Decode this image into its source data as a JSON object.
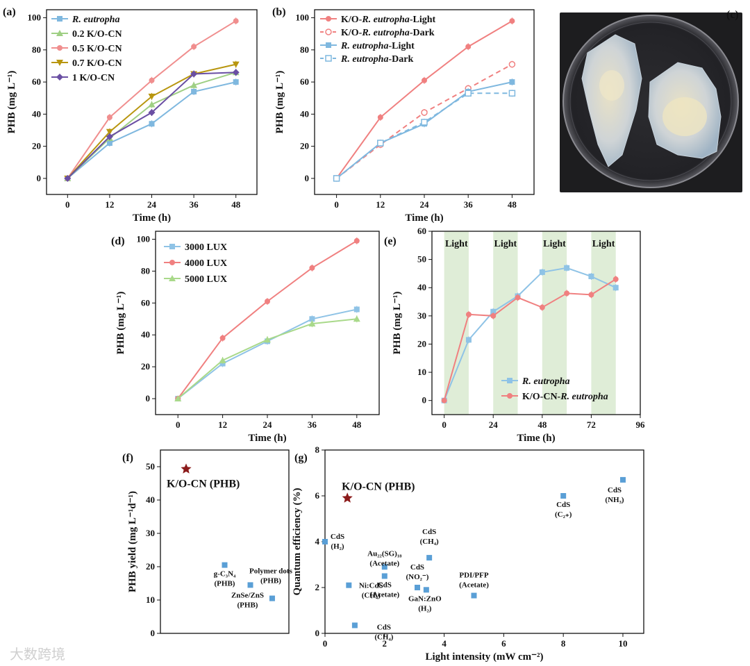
{
  "figure": {
    "panel_labels": [
      "(a)",
      "(b)",
      "(c)",
      "(d)",
      "(e)",
      "(f)",
      "(g)"
    ],
    "watermark": "大数跨境"
  },
  "chart_data": [
    {
      "id": "a",
      "type": "line",
      "xlabel": "Time (h)",
      "ylabel": "PHB (mg L⁻¹)",
      "x": [
        0,
        12,
        24,
        36,
        48
      ],
      "xlim": [
        -6,
        54
      ],
      "ylim": [
        -10,
        105
      ],
      "xticks": [
        0,
        12,
        24,
        36,
        48
      ],
      "yticks": [
        0,
        20,
        40,
        60,
        80,
        100
      ],
      "legend_position": "top-left",
      "series": [
        {
          "name": "R. eutropha",
          "italic": true,
          "color": "#7fb8df",
          "marker": "square",
          "values": [
            0,
            22,
            34,
            54,
            60
          ]
        },
        {
          "name": "0.2 K/O-CN",
          "color": "#9fcf84",
          "marker": "triangle",
          "values": [
            0,
            25,
            46,
            58,
            66
          ]
        },
        {
          "name": "0.5 K/O-CN",
          "color": "#f08e8e",
          "marker": "circle",
          "values": [
            0,
            38,
            61,
            82,
            98
          ]
        },
        {
          "name": "0.7 K/O-CN",
          "color": "#b8960f",
          "marker": "triangle-down",
          "values": [
            0,
            29,
            51,
            65,
            71
          ]
        },
        {
          "name": "1 K/O-CN",
          "color": "#6a4fa3",
          "marker": "diamond",
          "values": [
            0,
            26,
            41,
            65,
            66
          ]
        }
      ]
    },
    {
      "id": "b",
      "type": "line",
      "xlabel": "Time (h)",
      "ylabel": "PHB (mg L⁻¹)",
      "x": [
        0,
        12,
        24,
        36,
        48
      ],
      "xlim": [
        -6,
        54
      ],
      "ylim": [
        -10,
        105
      ],
      "xticks": [
        0,
        12,
        24,
        36,
        48
      ],
      "yticks": [
        0,
        20,
        40,
        60,
        80,
        100
      ],
      "legend_position": "top-left",
      "series": [
        {
          "name": "K/O-R. eutropha-Light",
          "prefix": "K/O-",
          "ital": "R. eutropha",
          "suffix": "-Light",
          "color": "#f08080",
          "marker": "circle",
          "dash": false,
          "values": [
            0,
            38,
            61,
            82,
            98
          ]
        },
        {
          "name": "K/O-R. eutropha-Dark",
          "prefix": "K/O-",
          "ital": "R. eutropha",
          "suffix": "-Dark",
          "color": "#f08080",
          "marker": "circle-open",
          "dash": true,
          "values": [
            0,
            21,
            41,
            56,
            71
          ]
        },
        {
          "name": "R. eutropha-Light",
          "prefix": "",
          "ital": "R. eutropha",
          "suffix": "-Light",
          "color": "#7fb8df",
          "marker": "square",
          "dash": false,
          "values": [
            0,
            22,
            34,
            54,
            60
          ]
        },
        {
          "name": "R. eutropha-Dark",
          "prefix": "",
          "ital": "R. eutropha",
          "suffix": "-Dark",
          "color": "#7fb8df",
          "marker": "square-open",
          "dash": true,
          "values": [
            0,
            22,
            35,
            53,
            53
          ]
        }
      ]
    },
    {
      "id": "d",
      "type": "line",
      "xlabel": "Time (h)",
      "ylabel": "PHB (mg L⁻¹)",
      "x": [
        0,
        12,
        24,
        36,
        48
      ],
      "xlim": [
        -6,
        54
      ],
      "ylim": [
        -10,
        105
      ],
      "xticks": [
        0,
        12,
        24,
        36,
        48
      ],
      "yticks": [
        0,
        20,
        40,
        60,
        80,
        100
      ],
      "legend_position": "top-left",
      "series": [
        {
          "name": "3000 LUX",
          "color": "#8fc3e6",
          "marker": "square",
          "values": [
            0,
            22,
            36,
            50,
            56
          ]
        },
        {
          "name": "4000 LUX",
          "color": "#f08080",
          "marker": "circle",
          "values": [
            0,
            38,
            61,
            82,
            99
          ]
        },
        {
          "name": "5000 LUX",
          "color": "#a9d98a",
          "marker": "triangle",
          "values": [
            0,
            24,
            37,
            47,
            50
          ]
        }
      ]
    },
    {
      "id": "e",
      "type": "line",
      "xlabel": "Time (h)",
      "ylabel": "PHB (mg L⁻¹)",
      "xlim": [
        -6,
        96
      ],
      "ylim": [
        -5,
        60
      ],
      "xticks": [
        0,
        24,
        48,
        72,
        96
      ],
      "yticks": [
        0,
        10,
        20,
        30,
        40,
        50,
        60
      ],
      "light_bands": [
        [
          0,
          12
        ],
        [
          24,
          36
        ],
        [
          48,
          60
        ],
        [
          72,
          84
        ]
      ],
      "band_label": "Light",
      "legend_position": "bottom-right",
      "series": [
        {
          "name": "R. eutropha",
          "prefix": "",
          "ital": "R. eutropha",
          "suffix": "",
          "color": "#8fc3e6",
          "marker": "square",
          "x": [
            0,
            12,
            24,
            36,
            48,
            60,
            72,
            84
          ],
          "values": [
            0,
            21.5,
            31.5,
            37,
            45.5,
            47,
            44,
            40
          ]
        },
        {
          "name": "K/O-CN-R. eutropha",
          "prefix": "K/O-CN-",
          "ital": "R. eutropha",
          "suffix": "",
          "color": "#f08080",
          "marker": "circle",
          "x": [
            0,
            12,
            24,
            36,
            48,
            60,
            72,
            84
          ],
          "values": [
            0,
            30.5,
            30,
            36.5,
            33,
            38,
            37.5,
            43
          ]
        }
      ]
    },
    {
      "id": "f",
      "type": "scatter",
      "ylabel": "PHB yield (mg L⁻¹d⁻¹)",
      "ylim": [
        0,
        55
      ],
      "yticks": [
        0,
        10,
        20,
        30,
        40,
        50
      ],
      "points": [
        {
          "x": 0.2,
          "y": 49.3,
          "marker": "star",
          "color": "#8b1a1a",
          "label": "K/O-CN (PHB)"
        },
        {
          "x": 0.5,
          "y": 20.5,
          "marker": "square",
          "color": "#5a9fd6",
          "label": "g-C₃N₄ (PHB)"
        },
        {
          "x": 0.7,
          "y": 14.5,
          "marker": "square",
          "color": "#5a9fd6",
          "label": "ZnSe/ZnS (PHB)"
        },
        {
          "x": 0.87,
          "y": 10.5,
          "marker": "square",
          "color": "#5a9fd6",
          "label": "Polymer dots (PHB)"
        }
      ]
    },
    {
      "id": "g",
      "type": "scatter",
      "xlabel": "Light intensity (mW cm⁻²)",
      "ylabel": "Quantum efficiency (%)",
      "xlim": [
        0,
        10.7
      ],
      "ylim": [
        0,
        8
      ],
      "xticks": [
        0,
        2,
        4,
        6,
        8,
        10
      ],
      "yticks": [
        0,
        2,
        4,
        6,
        8
      ],
      "points": [
        {
          "x": 0.75,
          "y": 5.9,
          "marker": "star",
          "color": "#8b1a1a",
          "label": "K/O-CN (PHB)"
        },
        {
          "x": 0.0,
          "y": 4.0,
          "marker": "square",
          "color": "#5a9fd6",
          "label": "CdS (H₂)"
        },
        {
          "x": 0.8,
          "y": 2.1,
          "marker": "square",
          "color": "#5a9fd6",
          "label": "Ni:CdS (CH₄)"
        },
        {
          "x": 1.0,
          "y": 0.35,
          "marker": "square",
          "color": "#5a9fd6",
          "label": "CdS (CH₄)"
        },
        {
          "x": 2.0,
          "y": 2.9,
          "marker": "square",
          "color": "#5a9fd6",
          "label": "Au₂₂(SG)₁₈ (Acetate)"
        },
        {
          "x": 2.0,
          "y": 2.5,
          "marker": "square",
          "color": "#5a9fd6",
          "label": "CdS (Acetate)"
        },
        {
          "x": 3.1,
          "y": 2.0,
          "marker": "square",
          "color": "#5a9fd6",
          "label": "CdS (NO₂⁻)"
        },
        {
          "x": 3.4,
          "y": 1.9,
          "marker": "square",
          "color": "#5a9fd6",
          "label": "GaN:ZnO (H₂)"
        },
        {
          "x": 3.5,
          "y": 3.3,
          "marker": "square",
          "color": "#5a9fd6",
          "label": "CdS (CH₄)"
        },
        {
          "x": 5.0,
          "y": 1.65,
          "marker": "square",
          "color": "#5a9fd6",
          "label": "PDI/PFP (Acetate)"
        },
        {
          "x": 8.0,
          "y": 6.0,
          "marker": "square",
          "color": "#5a9fd6",
          "label": "CdS (C₂₊)"
        },
        {
          "x": 10.0,
          "y": 6.7,
          "marker": "square",
          "color": "#5a9fd6",
          "label": "CdS (NH₃)"
        }
      ]
    }
  ]
}
